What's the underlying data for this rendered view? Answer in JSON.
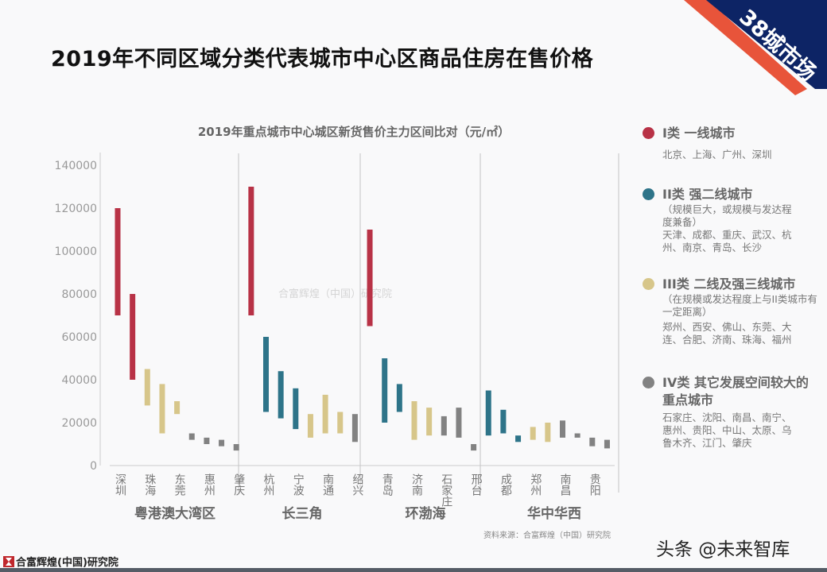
{
  "title": "2019年不同区域分类代表城市中心区商品住房在售价格",
  "corner_badge": "38城市场",
  "colors": {
    "tier1": "#b83246",
    "tier2": "#2e7489",
    "tier3": "#d7c68a",
    "tier4": "#828282",
    "badge_navy": "#0d2465",
    "badge_orange": "#e8543a"
  },
  "chart_data": {
    "type": "bar",
    "subtype": "floating-range",
    "title": "2019年重点城市中心城区新货售价主力区间比对（元/㎡）",
    "ylim": [
      0,
      140000
    ],
    "yticks": [
      0,
      20000,
      40000,
      60000,
      80000,
      100000,
      120000,
      140000
    ],
    "grid": false,
    "legend_position": "right",
    "groups": [
      {
        "name": "粤港澳大湾区",
        "categories": [
          "深圳",
          "",
          "珠海",
          "",
          "东莞",
          "",
          "惠州",
          "",
          "肇庆"
        ],
        "tiers": [
          1,
          1,
          3,
          3,
          3,
          4,
          4,
          4,
          4
        ],
        "low": [
          70000,
          40000,
          28000,
          15000,
          24000,
          12000,
          10000,
          9000,
          7000
        ],
        "high": [
          120000,
          80000,
          45000,
          38000,
          30000,
          15000,
          13000,
          12000,
          10000
        ]
      },
      {
        "name": "长三角",
        "categories": [
          "",
          "杭州",
          "",
          "宁波",
          "",
          "南通",
          "",
          "绍兴"
        ],
        "tiers": [
          1,
          2,
          2,
          2,
          3,
          3,
          3,
          4
        ],
        "low": [
          70000,
          25000,
          22000,
          17000,
          13000,
          15000,
          15000,
          11000
        ],
        "high": [
          130000,
          60000,
          44000,
          36000,
          24000,
          33000,
          25000,
          24000
        ]
      },
      {
        "name": "环渤海",
        "categories": [
          "",
          "青岛",
          "",
          "济南",
          "",
          "石家庄",
          "",
          "邢台"
        ],
        "tiers": [
          1,
          2,
          2,
          3,
          3,
          4,
          4,
          4
        ],
        "low": [
          65000,
          20000,
          25000,
          12000,
          14000,
          14000,
          13000,
          7000
        ],
        "high": [
          110000,
          50000,
          38000,
          30000,
          27000,
          23000,
          27000,
          10000
        ]
      },
      {
        "name": "华中华西",
        "categories": [
          "",
          "成都",
          "",
          "郑州",
          "",
          "南昌",
          "",
          "贵阳",
          ""
        ],
        "tiers": [
          2,
          2,
          2,
          3,
          3,
          4,
          4,
          4,
          4
        ],
        "low": [
          14000,
          15000,
          11000,
          12000,
          11000,
          13000,
          13000,
          9000,
          8000
        ],
        "high": [
          35000,
          26000,
          14000,
          18000,
          20000,
          21000,
          15000,
          13000,
          12000
        ]
      }
    ]
  },
  "watermark": "合富辉煌（中国）研究院",
  "legend": [
    {
      "heading": "I类 一线城市",
      "note": "",
      "cities": "北京、上海、广州、深圳",
      "color": "#b83246"
    },
    {
      "heading": "II类 强二线城市",
      "note": "（规模巨大，或规模与发达程度兼备）",
      "cities": "天津、成都、重庆、武汉、杭州、南京、青岛、长沙",
      "color": "#2e7489"
    },
    {
      "heading": "III类 二线及强三线城市",
      "note": "（在规模或发达程度上与II类城市有一定距离）",
      "cities": "郑州、西安、佛山、东莞、大连、合肥、济南、珠海、福州",
      "color": "#d7c68a"
    },
    {
      "heading": "IV类 其它发展空间较大的重点城市",
      "note": "",
      "cities": "石家庄、沈阳、南昌、南宁、惠州、贵阳、中山、太原、乌鲁木齐、江门、肇庆",
      "color": "#828282"
    }
  ],
  "source": "资料来源：合富辉煌（中国）研究院",
  "toutiao": "头条 @未来智库",
  "footer_logo": "合富辉煌(中国)研究院"
}
